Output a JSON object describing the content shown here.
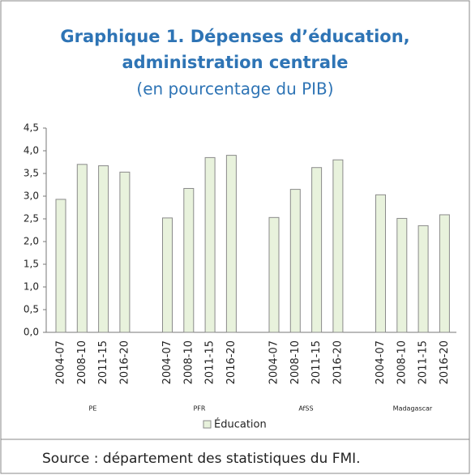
{
  "chart_data": {
    "type": "bar",
    "title": [
      "Graphique 1. Dépenses d’éducation,",
      "administration centrale"
    ],
    "subtitle": "(en pourcentage du PIB)",
    "categories": [
      "2004-07",
      "2008-10",
      "2011-15",
      "2016-20",
      "2004-07",
      "2008-10",
      "2011-15",
      "2016-20",
      "2004-07",
      "2008-10",
      "2011-15",
      "2016-20",
      "2004-07",
      "2008-10",
      "2011-15",
      "2016-20"
    ],
    "groups": [
      "PE",
      "PFR",
      "AfSS",
      "Madagascar"
    ],
    "series": [
      {
        "name": "Éducation",
        "color": "#e8f2dc",
        "values": [
          2.93,
          3.7,
          3.67,
          3.53,
          2.52,
          3.17,
          3.85,
          3.9,
          2.53,
          3.15,
          3.63,
          3.8,
          3.03,
          2.51,
          2.35,
          2.59
        ]
      }
    ],
    "ylim": [
      0,
      4.5
    ],
    "yticks": [
      {
        "value": 0,
        "label": "0,0"
      },
      {
        "value": 0.5,
        "label": "0,5"
      },
      {
        "value": 1,
        "label": "1,0"
      },
      {
        "value": 1.5,
        "label": "1,5"
      },
      {
        "value": 2,
        "label": "2,0"
      },
      {
        "value": 2.5,
        "label": "2,5"
      },
      {
        "value": 3,
        "label": "3,0"
      },
      {
        "value": 3.5,
        "label": "3,5"
      },
      {
        "value": 4,
        "label": "4,0"
      },
      {
        "value": 4.5,
        "label": "4,5"
      }
    ],
    "source": "Source : département des statistiques du FMI."
  }
}
